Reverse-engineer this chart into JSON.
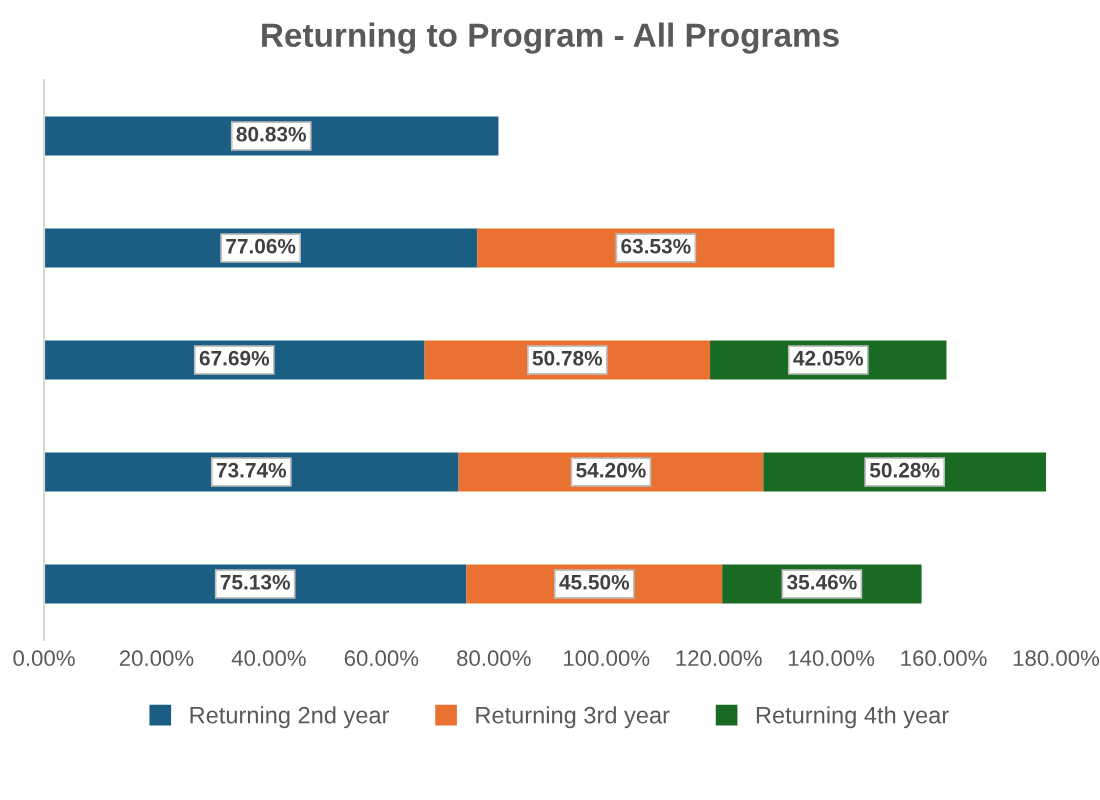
{
  "chart_data": {
    "type": "bar",
    "orientation": "horizontal",
    "stacked": true,
    "title": "Returning to Program - All Programs",
    "categories": [
      null,
      null,
      null,
      null,
      null
    ],
    "series": [
      {
        "name": "Returning 2nd year",
        "color": "#1b5e84",
        "values": [
          80.83,
          77.06,
          67.69,
          73.74,
          75.13
        ],
        "value_labels": [
          "80.83%",
          "77.06%",
          "67.69%",
          "73.74%",
          "75.13%"
        ]
      },
      {
        "name": "Returning 3rd year",
        "color": "#e97132",
        "values": [
          null,
          63.53,
          50.78,
          54.2,
          45.5
        ],
        "value_labels": [
          null,
          "63.53%",
          "50.78%",
          "54.20%",
          "45.50%"
        ]
      },
      {
        "name": "Returning 4th year",
        "color": "#196b24",
        "values": [
          null,
          null,
          42.05,
          50.28,
          35.46
        ],
        "value_labels": [
          null,
          null,
          "42.05%",
          "50.28%",
          "35.46%"
        ]
      }
    ],
    "xlim": [
      0,
      180
    ],
    "xticks": [
      {
        "value": 0,
        "label": "0.00%"
      },
      {
        "value": 20,
        "label": "20.00%"
      },
      {
        "value": 40,
        "label": "40.00%"
      },
      {
        "value": 60,
        "label": "60.00%"
      },
      {
        "value": 80,
        "label": "80.00%"
      },
      {
        "value": 100,
        "label": "100.00%"
      },
      {
        "value": 120,
        "label": "120.00%"
      },
      {
        "value": 140,
        "label": "140.00%"
      },
      {
        "value": 160,
        "label": "160.00%"
      },
      {
        "value": 180,
        "label": "180.00%"
      }
    ],
    "legend": "bottom",
    "grid": false
  }
}
